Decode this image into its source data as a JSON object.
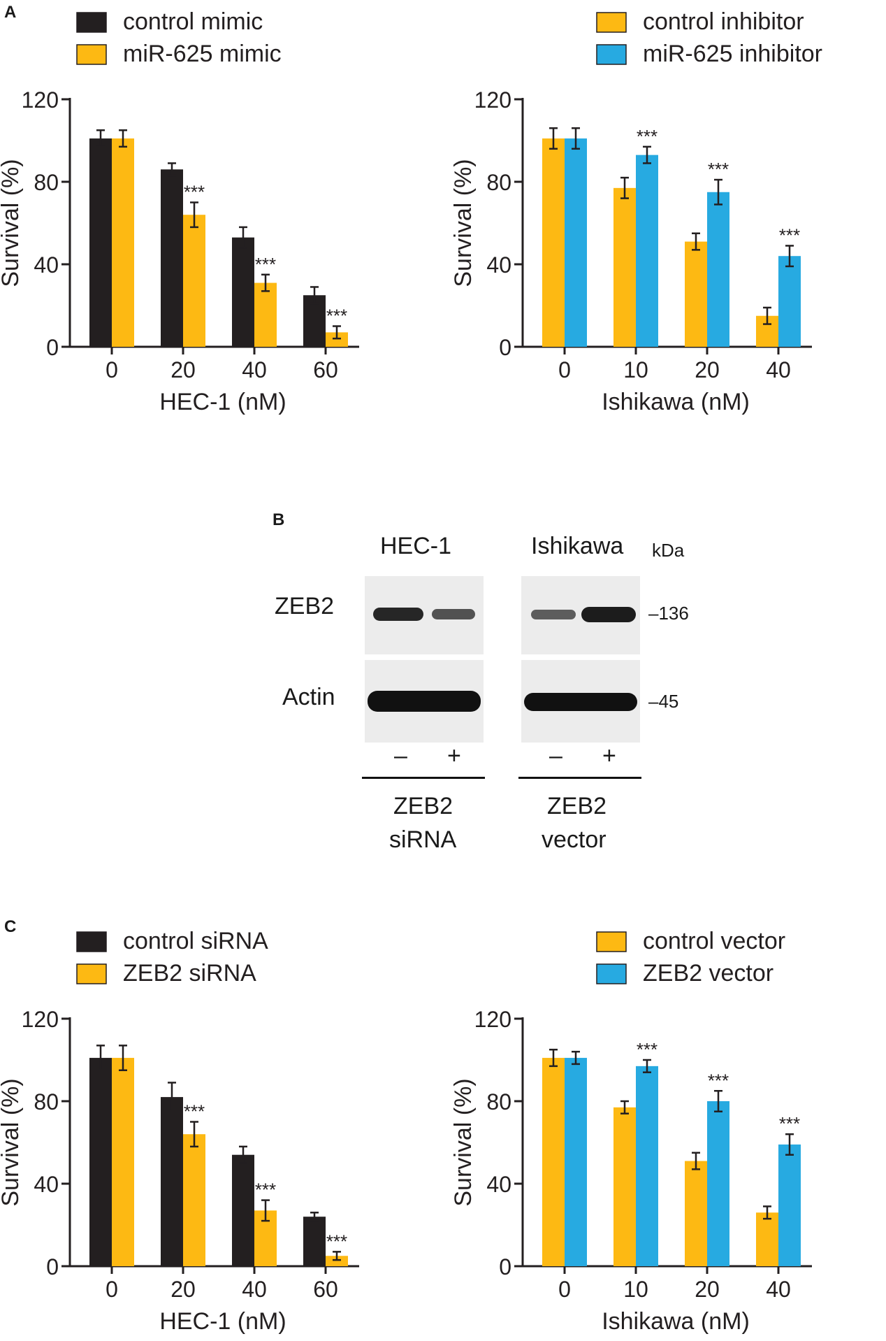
{
  "panels": {
    "a": "A",
    "b": "B",
    "c": "C"
  },
  "colors": {
    "black": "#231f20",
    "yellow": "#fdb913",
    "blue": "#27aae1"
  },
  "chart_data": [
    {
      "type": "bar",
      "panel": "A-left",
      "legend": [
        "control mimic",
        "miR-625 mimic"
      ],
      "xlabel": "HEC-1 (nM)",
      "ylabel": "Survival (%)",
      "categories": [
        "0",
        "20",
        "40",
        "60"
      ],
      "ylim": [
        0,
        120
      ],
      "yticks": [
        0,
        40,
        80,
        120
      ],
      "series": [
        {
          "name": "control mimic",
          "color": "#231f20",
          "values": [
            101,
            86,
            53,
            25
          ],
          "errors": [
            4,
            3,
            5,
            4
          ]
        },
        {
          "name": "miR-625 mimic",
          "color": "#fdb913",
          "values": [
            101,
            64,
            31,
            7
          ],
          "errors": [
            4,
            6,
            4,
            3
          ]
        }
      ],
      "annotations": [
        "",
        "***",
        "***",
        "***"
      ]
    },
    {
      "type": "bar",
      "panel": "A-right",
      "legend": [
        "control inhibitor",
        "miR-625 inhibitor"
      ],
      "xlabel": "Ishikawa (nM)",
      "ylabel": "Survival (%)",
      "categories": [
        "0",
        "10",
        "20",
        "40"
      ],
      "ylim": [
        0,
        120
      ],
      "yticks": [
        0,
        40,
        80,
        120
      ],
      "series": [
        {
          "name": "control inhibitor",
          "color": "#fdb913",
          "values": [
            101,
            77,
            51,
            15
          ],
          "errors": [
            5,
            5,
            4,
            4
          ]
        },
        {
          "name": "miR-625 inhibitor",
          "color": "#27aae1",
          "values": [
            101,
            93,
            75,
            44
          ],
          "errors": [
            5,
            4,
            6,
            5
          ]
        }
      ],
      "annotations": [
        "",
        "***",
        "***",
        "***"
      ]
    },
    {
      "type": "bar",
      "panel": "C-left",
      "legend": [
        "control siRNA",
        "ZEB2 siRNA"
      ],
      "xlabel": "HEC-1 (nM)",
      "ylabel": "Survival (%)",
      "categories": [
        "0",
        "20",
        "40",
        "60"
      ],
      "ylim": [
        0,
        120
      ],
      "yticks": [
        0,
        40,
        80,
        120
      ],
      "series": [
        {
          "name": "control siRNA",
          "color": "#231f20",
          "values": [
            101,
            82,
            54,
            24
          ],
          "errors": [
            6,
            7,
            4,
            2
          ]
        },
        {
          "name": "ZEB2 siRNA",
          "color": "#fdb913",
          "values": [
            101,
            64,
            27,
            5
          ],
          "errors": [
            6,
            6,
            5,
            2
          ]
        }
      ],
      "annotations": [
        "",
        "***",
        "***",
        "***"
      ]
    },
    {
      "type": "bar",
      "panel": "C-right",
      "legend": [
        "control vector",
        "ZEB2 vector"
      ],
      "xlabel": "Ishikawa (nM)",
      "ylabel": "Survival (%)",
      "categories": [
        "0",
        "10",
        "20",
        "40"
      ],
      "ylim": [
        0,
        120
      ],
      "yticks": [
        0,
        40,
        80,
        120
      ],
      "series": [
        {
          "name": "control vector",
          "color": "#fdb913",
          "values": [
            101,
            77,
            51,
            26
          ],
          "errors": [
            4,
            3,
            4,
            3
          ]
        },
        {
          "name": "ZEB2 vector",
          "color": "#27aae1",
          "values": [
            101,
            97,
            80,
            59
          ],
          "errors": [
            3,
            3,
            5,
            5
          ]
        }
      ],
      "annotations": [
        "",
        "***",
        "***",
        "***"
      ]
    }
  ],
  "blot": {
    "hec1": "HEC-1",
    "ishikawa": "Ishikawa",
    "kda": "kDa",
    "zeb2": "ZEB2",
    "actin": "Actin",
    "mw136": "–136",
    "mw45": "–45",
    "minus": "–",
    "plus": "+",
    "left_treat_1": "ZEB2",
    "left_treat_2": "siRNA",
    "right_treat_1": "ZEB2",
    "right_treat_2": "vector"
  }
}
